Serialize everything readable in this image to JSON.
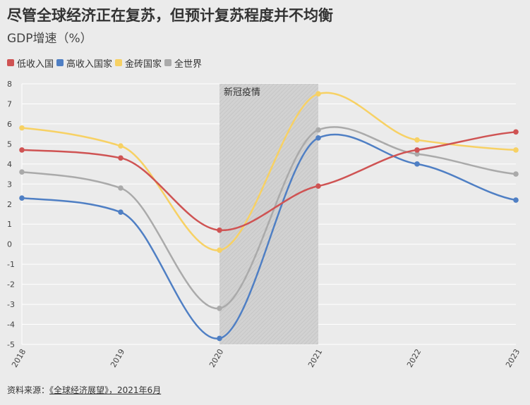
{
  "header": {
    "title": "尽管全球经济正在复苏，但预计复苏程度并不均衡",
    "subtitle": "GDP增速（%）"
  },
  "source": {
    "prefix": "资料来源：",
    "link_text": "《全球经济展望》，2021年6月"
  },
  "chart_data": {
    "type": "line",
    "x": [
      "2018",
      "2019",
      "2020",
      "2021",
      "2022",
      "2023"
    ],
    "ylim": [
      -5,
      8
    ],
    "yticks": [
      "8",
      "7",
      "6",
      "5",
      "4",
      "3",
      "2",
      "1",
      "0",
      "-1",
      "-2",
      "-3",
      "-4",
      "-5"
    ],
    "grid": true,
    "legend_position": "top-left",
    "annotation": {
      "label": "新冠疫情",
      "x_start": "2020",
      "x_end": "2021"
    },
    "series": [
      {
        "name": "低收入国",
        "color": "#cf5353",
        "values": [
          4.7,
          4.3,
          0.7,
          2.9,
          4.7,
          5.6
        ]
      },
      {
        "name": "高收入国家",
        "color": "#4f7fc4",
        "values": [
          2.3,
          1.6,
          -4.7,
          5.3,
          4.0,
          2.2
        ]
      },
      {
        "name": "金砖国家",
        "color": "#f7d164",
        "values": [
          5.8,
          4.9,
          -0.3,
          7.5,
          5.2,
          4.7
        ]
      },
      {
        "name": "全世界",
        "color": "#aaaaaa",
        "values": [
          3.6,
          2.8,
          -3.2,
          5.7,
          4.5,
          3.5
        ]
      }
    ]
  }
}
